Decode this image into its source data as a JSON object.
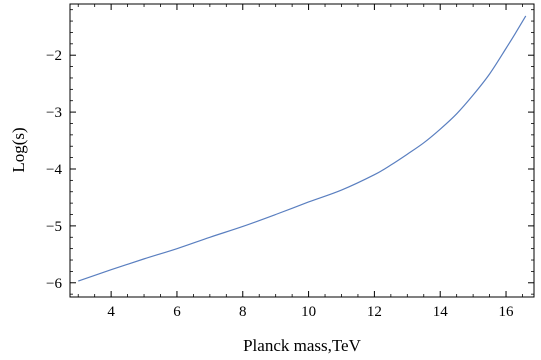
{
  "chart_data": {
    "type": "line",
    "title": "",
    "xlabel": "Planck mass,TeV",
    "ylabel": "Log(s)",
    "xlim": [
      2.75,
      16.85
    ],
    "ylim": [
      -6.25,
      -1.1
    ],
    "grid": false,
    "x_ticks": [
      {
        "value": 4,
        "label": "4"
      },
      {
        "value": 6,
        "label": "6"
      },
      {
        "value": 8,
        "label": "8"
      },
      {
        "value": 10,
        "label": "10"
      },
      {
        "value": 12,
        "label": "12"
      },
      {
        "value": 14,
        "label": "14"
      },
      {
        "value": 16,
        "label": "16"
      }
    ],
    "y_ticks": [
      {
        "value": -6,
        "label": "−6"
      },
      {
        "value": -5,
        "label": "−5"
      },
      {
        "value": -4,
        "label": "−4"
      },
      {
        "value": -3,
        "label": "−3"
      },
      {
        "value": -2,
        "label": "−2"
      }
    ],
    "series": [
      {
        "color": "#5a7fc0",
        "x": [
          3.0,
          4.0,
          5.0,
          6.0,
          7.0,
          8.0,
          9.0,
          10.0,
          11.0,
          12.0,
          12.5,
          13.0,
          13.5,
          14.0,
          14.5,
          15.0,
          15.5,
          16.0,
          16.3,
          16.6
        ],
        "y": [
          -5.97,
          -5.77,
          -5.58,
          -5.4,
          -5.2,
          -5.01,
          -4.8,
          -4.58,
          -4.37,
          -4.1,
          -3.93,
          -3.74,
          -3.54,
          -3.3,
          -3.03,
          -2.7,
          -2.33,
          -1.88,
          -1.6,
          -1.31
        ]
      }
    ]
  }
}
